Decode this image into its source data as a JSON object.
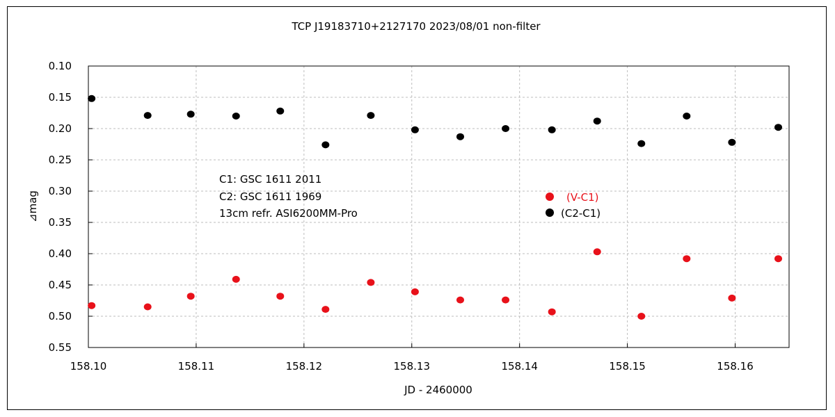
{
  "chart_data": {
    "type": "scatter",
    "title": "TCP J19183710+2127170   2023/08/01   non-filter",
    "xlabel": "JD - 2460000",
    "ylabel": "⊿mag",
    "xlim": [
      158.1,
      158.165
    ],
    "ylim": [
      0.55,
      0.1
    ],
    "y_inverted": true,
    "grid": true,
    "x_ticks": [
      "158.10",
      "158.11",
      "158.12",
      "158.13",
      "158.14",
      "158.15",
      "158.16"
    ],
    "y_ticks": [
      "0.10",
      "0.15",
      "0.20",
      "0.25",
      "0.30",
      "0.35",
      "0.40",
      "0.45",
      "0.50",
      "0.55"
    ],
    "legend_position": "right",
    "annotations": [
      "C1: GSC 1611 2011",
      "C2: GSC 1611 1969",
      "13cm refr.  ASI6200MM-Pro"
    ],
    "series": [
      {
        "name": "(V-C1)",
        "color": "#e8111a",
        "x": [
          158.1003,
          158.1055,
          158.1095,
          158.1137,
          158.1178,
          158.122,
          158.1262,
          158.1303,
          158.1345,
          158.1387,
          158.143,
          158.1472,
          158.1513,
          158.1555,
          158.1597,
          158.164
        ],
        "y": [
          0.483,
          0.485,
          0.468,
          0.441,
          0.468,
          0.489,
          0.446,
          0.461,
          0.474,
          0.474,
          0.493,
          0.397,
          0.5,
          0.408,
          0.471,
          0.408
        ]
      },
      {
        "name": "(C2-C1)",
        "color": "#000000",
        "x": [
          158.1003,
          158.1055,
          158.1095,
          158.1137,
          158.1178,
          158.122,
          158.1262,
          158.1303,
          158.1345,
          158.1387,
          158.143,
          158.1472,
          158.1513,
          158.1555,
          158.1597,
          158.164
        ],
        "y": [
          0.152,
          0.179,
          0.177,
          0.18,
          0.172,
          0.226,
          0.179,
          0.202,
          0.213,
          0.2,
          0.202,
          0.188,
          0.224,
          0.18,
          0.222,
          0.198
        ]
      }
    ]
  }
}
